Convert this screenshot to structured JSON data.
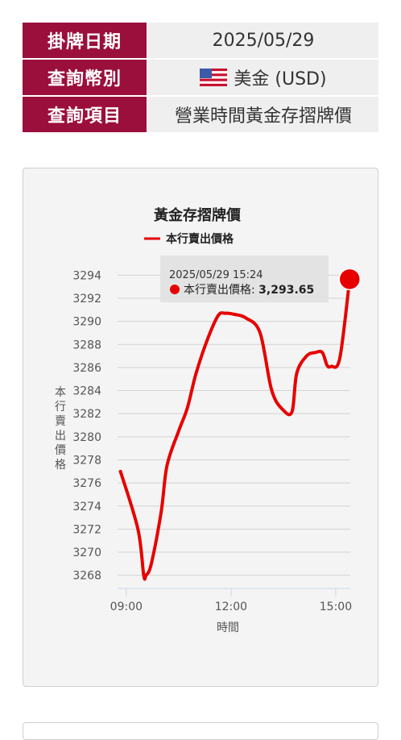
{
  "info": {
    "rows": [
      {
        "label": "掛牌日期",
        "value": "2025/05/29"
      },
      {
        "label": "查詢幣別",
        "value": "美金 (USD)"
      },
      {
        "label": "查詢項目",
        "value": "營業時間黃金存摺牌價"
      }
    ],
    "flag_icon": "us-flag-icon"
  },
  "chart_data": {
    "type": "line",
    "title": "黃金存摺牌價",
    "xlabel": "時間",
    "ylabel": "本行賣出價格",
    "legend": "top",
    "ylim": [
      3267,
      3295
    ],
    "xlim": [
      "08:45",
      "15:25"
    ],
    "y_ticks": [
      "3294",
      "3292",
      "3290",
      "3288",
      "3286",
      "3284",
      "3282",
      "3280",
      "3278",
      "3276",
      "3274",
      "3272",
      "3270",
      "3268"
    ],
    "x_ticks": [
      "09:00",
      "12:00",
      "15:00"
    ],
    "series": [
      {
        "name": "本行賣出價格",
        "color": "#e60000",
        "x": [
          "08:50",
          "09:20",
          "09:30",
          "09:34",
          "09:43",
          "10:00",
          "10:10",
          "10:30",
          "10:45",
          "11:00",
          "11:20",
          "11:38",
          "11:50",
          "12:06",
          "12:25",
          "12:50",
          "13:10",
          "13:30",
          "13:45",
          "13:53",
          "14:10",
          "14:25",
          "14:37",
          "14:45",
          "14:52",
          "15:07",
          "15:24"
        ],
        "values": [
          3277.0,
          3272.0,
          3268.0,
          3268.0,
          3269.0,
          3273.5,
          3277.5,
          3280.5,
          3282.5,
          3285.5,
          3288.5,
          3290.5,
          3290.7,
          3290.6,
          3290.3,
          3289.0,
          3284.0,
          3282.3,
          3282.2,
          3285.5,
          3287.0,
          3287.3,
          3287.3,
          3286.2,
          3286.1,
          3286.8,
          3293.65
        ]
      }
    ],
    "tooltip": {
      "time": "2025/05/29 15:24",
      "series": "本行賣出價格",
      "value": "3,293.65"
    }
  }
}
